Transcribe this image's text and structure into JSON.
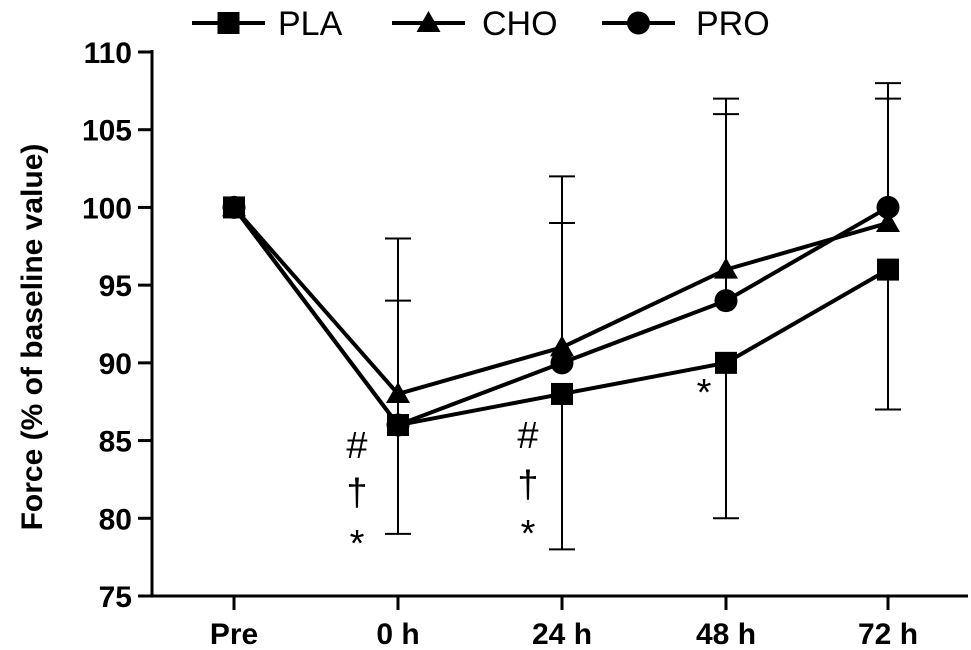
{
  "chart_data": {
    "type": "line",
    "title": "",
    "xlabel": "",
    "ylabel": "Force (% of baseline value)",
    "categories": [
      "Pre",
      "0 h",
      "24 h",
      "48 h",
      "72 h"
    ],
    "ylim": [
      75,
      110
    ],
    "yticks": [
      75,
      80,
      85,
      90,
      95,
      100,
      105,
      110
    ],
    "legend_position": "top",
    "grid": false,
    "series": [
      {
        "name": "PLA",
        "marker": "square",
        "values": [
          100,
          86,
          88,
          90,
          96
        ],
        "error_upper": [
          null,
          null,
          null,
          null,
          null
        ],
        "error_lower": [
          null,
          79,
          78,
          80,
          87
        ]
      },
      {
        "name": "CHO",
        "marker": "triangle",
        "values": [
          100,
          88,
          91,
          96,
          99
        ],
        "error_upper": [
          null,
          98,
          102,
          107,
          108
        ],
        "error_lower": [
          null,
          null,
          null,
          null,
          null
        ]
      },
      {
        "name": "PRO",
        "marker": "circle",
        "values": [
          100,
          86,
          90,
          94,
          100
        ],
        "error_upper": [
          null,
          94,
          99,
          106,
          107
        ],
        "error_lower": [
          null,
          null,
          null,
          null,
          null
        ]
      }
    ],
    "annotations": [
      {
        "category": "0 h",
        "lines": [
          "#",
          "†",
          "*"
        ]
      },
      {
        "category": "24 h",
        "lines": [
          "#",
          "†",
          "*"
        ]
      },
      {
        "category": "48 h",
        "lines": [
          "*"
        ]
      }
    ]
  }
}
